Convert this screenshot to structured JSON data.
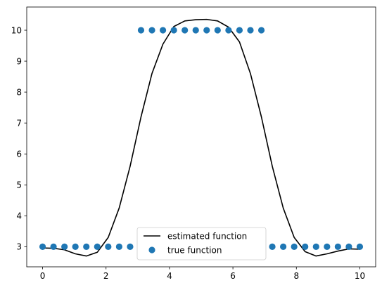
{
  "chart_data": {
    "type": "line",
    "title": "",
    "xlabel": "",
    "ylabel": "",
    "xlim": [
      -0.5,
      10.5
    ],
    "ylim": [
      2.35,
      10.75
    ],
    "x_ticks": [
      0,
      2,
      4,
      6,
      8,
      10
    ],
    "y_ticks": [
      3,
      4,
      5,
      6,
      7,
      8,
      9,
      10
    ],
    "grid": false,
    "legend_position": "bottom-center",
    "series": [
      {
        "name": "estimated function",
        "kind": "line",
        "color": "#000000",
        "x": [
          0,
          0.345,
          0.69,
          1.034,
          1.379,
          1.724,
          2.069,
          2.414,
          2.759,
          3.103,
          3.448,
          3.793,
          4.138,
          4.483,
          4.828,
          5.172,
          5.517,
          5.862,
          6.207,
          6.552,
          6.897,
          7.241,
          7.586,
          7.931,
          8.276,
          8.621,
          8.966,
          9.31,
          9.655,
          10
        ],
        "values": [
          2.96,
          2.95,
          2.9,
          2.77,
          2.7,
          2.82,
          3.3,
          4.25,
          5.6,
          7.2,
          8.6,
          9.55,
          10.12,
          10.3,
          10.34,
          10.35,
          10.3,
          10.1,
          9.62,
          8.6,
          7.2,
          5.6,
          4.25,
          3.3,
          2.84,
          2.7,
          2.77,
          2.86,
          2.93,
          2.92
        ]
      },
      {
        "name": "true function",
        "kind": "scatter",
        "color": "#1f77b4",
        "x": [
          0,
          0.345,
          0.69,
          1.034,
          1.379,
          1.724,
          2.069,
          2.414,
          2.759,
          3.103,
          3.448,
          3.793,
          4.138,
          4.483,
          4.828,
          5.172,
          5.517,
          5.862,
          6.207,
          6.552,
          6.897,
          7.241,
          7.586,
          7.931,
          8.276,
          8.621,
          8.966,
          9.31,
          9.655,
          10
        ],
        "values": [
          3,
          3,
          3,
          3,
          3,
          3,
          3,
          3,
          3,
          10,
          10,
          10,
          10,
          10,
          10,
          10,
          10,
          10,
          10,
          10,
          10,
          3,
          3,
          3,
          3,
          3,
          3,
          3,
          3,
          3
        ]
      }
    ]
  }
}
